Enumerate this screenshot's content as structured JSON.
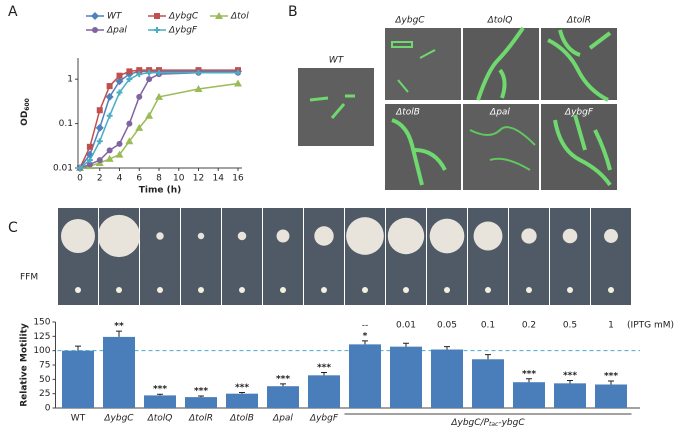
{
  "panel_labels": [
    "A",
    "B",
    "C"
  ],
  "microscopy": {
    "labels": [
      "WT",
      "ΔybgC",
      "ΔtolQ",
      "ΔtolR",
      "ΔtolB",
      "Δpal",
      "ΔybgF"
    ]
  },
  "colony_row_label": "FFM",
  "chart_data": [
    {
      "type": "line",
      "log_y": true,
      "x_label": "Time (h)",
      "y_label": "OD",
      "y_label_sub": "600",
      "x": [
        0,
        1,
        2,
        3,
        4,
        5,
        6,
        7,
        8,
        12,
        16
      ],
      "xlim": [
        0,
        16
      ],
      "xticks": [
        0,
        2,
        4,
        6,
        8,
        10,
        12,
        14,
        16
      ],
      "ylim": [
        0.01,
        3
      ],
      "yticks": [
        0.01,
        0.1,
        1
      ],
      "series": [
        {
          "name": "WT",
          "color": "#4f81bd",
          "marker": "diamond",
          "values": [
            0.01,
            0.02,
            0.08,
            0.4,
            0.9,
            1.3,
            1.5,
            1.5,
            1.5,
            1.5,
            1.5
          ]
        },
        {
          "name": "ΔybgC",
          "color": "#c0504d",
          "marker": "square",
          "values": [
            0.01,
            0.03,
            0.2,
            0.7,
            1.2,
            1.5,
            1.6,
            1.6,
            1.6,
            1.6,
            1.6
          ]
        },
        {
          "name": "Δtol",
          "color": "#9bbb59",
          "marker": "triangle",
          "values": [
            0.01,
            0.011,
            0.013,
            0.016,
            0.02,
            0.04,
            0.08,
            0.15,
            0.4,
            0.6,
            0.8
          ]
        },
        {
          "name": "Δpal",
          "color": "#8064a2",
          "marker": "circle",
          "values": [
            0.01,
            0.012,
            0.015,
            0.025,
            0.035,
            0.1,
            0.4,
            1.0,
            1.3,
            1.4,
            1.4
          ]
        },
        {
          "name": "ΔybgF",
          "color": "#4bacc6",
          "marker": "cross",
          "values": [
            0.01,
            0.015,
            0.04,
            0.15,
            0.5,
            1.0,
            1.3,
            1.4,
            1.4,
            1.4,
            1.4
          ]
        }
      ]
    },
    {
      "type": "bar",
      "color": "#4a7ebb",
      "y_label": "Relative Motility",
      "categories": [
        "WT",
        "ΔybgC",
        "ΔtolQ",
        "ΔtolR",
        "ΔtolB",
        "Δpal",
        "ΔybgF",
        null,
        null,
        null,
        null,
        null,
        null,
        null
      ],
      "values": [
        100,
        124,
        22,
        19,
        25,
        38,
        57,
        111,
        107,
        102,
        85,
        45,
        43,
        41
      ],
      "errors": [
        8,
        10,
        2,
        2,
        2,
        4,
        5,
        6,
        6,
        5,
        8,
        6,
        5,
        6
      ],
      "significance": [
        null,
        "**",
        "***",
        "***",
        "***",
        "***",
        "***",
        "*",
        null,
        null,
        null,
        "***",
        "***",
        "***"
      ],
      "ylim": [
        0,
        150
      ],
      "yticks": [
        0,
        25,
        50,
        75,
        100,
        125,
        150
      ],
      "reference_line": 100,
      "iptg_labels": [
        "--",
        "0.01",
        "0.05",
        "0.1",
        "0.2",
        "0.5",
        "1"
      ],
      "iptg_unit": "(IPTG mM)",
      "group_label_parts": [
        "ΔybgC/P",
        "tac",
        "-ybgC"
      ]
    }
  ]
}
